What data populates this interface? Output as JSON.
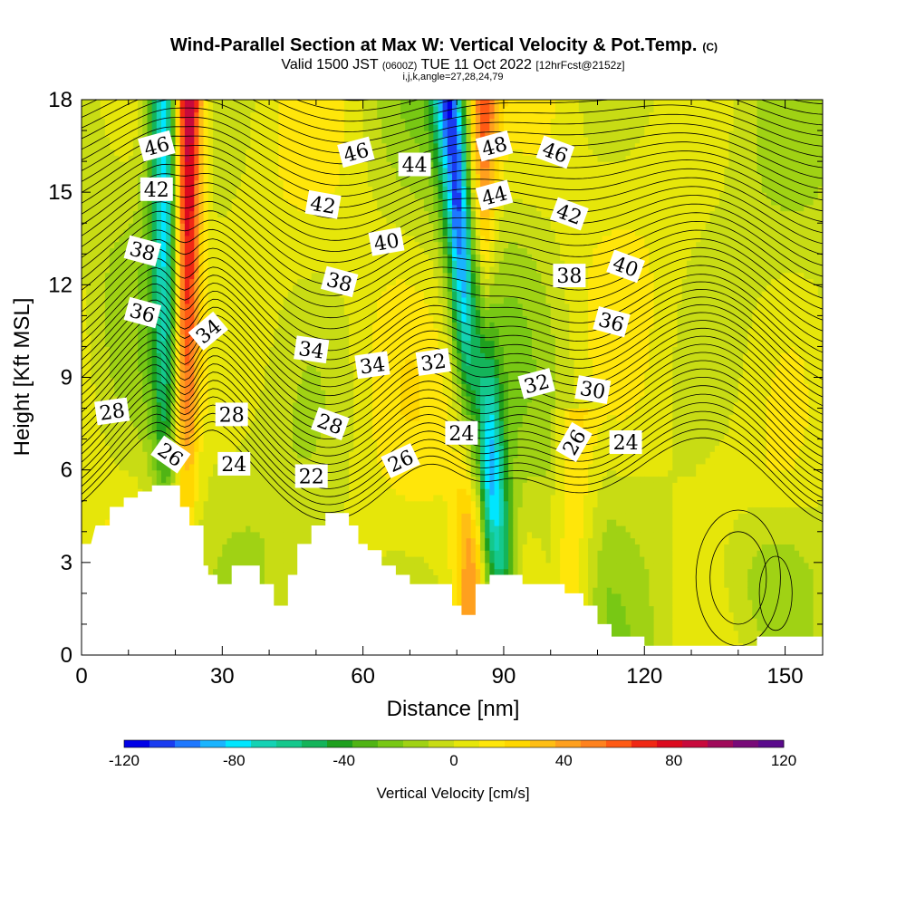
{
  "title": {
    "main": "Wind-Parallel Section at Max W: Vertical Velocity & Pot.Temp.",
    "main_unit": "(C)",
    "valid_prefix": "Valid 1500 JST",
    "valid_zulu": "(0600Z)",
    "valid_date": "TUE 11 Oct 2022",
    "forecast": "[12hrFcst@2152z]",
    "indices": "i,j,k,angle=27,28,24,79"
  },
  "chart_data": {
    "type": "heatmap",
    "xlabel": "Distance [nm]",
    "ylabel": "Height [Kft MSL]",
    "xlim": [
      0,
      158
    ],
    "ylim": [
      0,
      18
    ],
    "x_ticks": [
      0,
      30,
      60,
      90,
      120,
      150
    ],
    "y_ticks": [
      0,
      3,
      6,
      9,
      12,
      15,
      18
    ],
    "grid": false,
    "colorbar": {
      "label": "Vertical Velocity [cm/s]",
      "min": -120,
      "max": 120,
      "step": 10,
      "tick_values": [
        -120,
        -80,
        -40,
        0,
        40,
        80,
        120
      ],
      "colors": [
        "#0000e6",
        "#1a3cf0",
        "#1e78ff",
        "#19b4ff",
        "#00e6ff",
        "#14d2b4",
        "#14c88c",
        "#14b45a",
        "#1ea01e",
        "#50b414",
        "#78c814",
        "#a0d214",
        "#c8dc14",
        "#e6e60a",
        "#ffe60a",
        "#ffd700",
        "#ffbe14",
        "#ffa01e",
        "#ff821e",
        "#ff5a14",
        "#f02814",
        "#dc0a1e",
        "#c80a3c",
        "#a00a5a",
        "#780a78",
        "#5a0a8c"
      ]
    },
    "terrain_kft": [
      [
        0,
        3.6
      ],
      [
        1,
        3.6
      ],
      [
        2,
        3.6
      ],
      [
        3,
        4.2
      ],
      [
        6,
        4.2
      ],
      [
        6,
        4.8
      ],
      [
        9,
        4.8
      ],
      [
        9,
        5.1
      ],
      [
        12,
        5.1
      ],
      [
        12,
        5.3
      ],
      [
        15,
        5.3
      ],
      [
        15,
        5.5
      ],
      [
        21,
        5.5
      ],
      [
        21,
        4.8
      ],
      [
        23,
        4.8
      ],
      [
        23,
        4.2
      ],
      [
        26,
        4.2
      ],
      [
        26,
        2.9
      ],
      [
        27,
        2.9
      ],
      [
        27,
        2.6
      ],
      [
        29,
        2.6
      ],
      [
        29,
        2.3
      ],
      [
        32,
        2.3
      ],
      [
        32,
        2.9
      ],
      [
        38,
        2.9
      ],
      [
        38,
        2.3
      ],
      [
        41,
        2.3
      ],
      [
        41,
        1.6
      ],
      [
        44,
        1.6
      ],
      [
        44,
        2.6
      ],
      [
        46,
        2.6
      ],
      [
        46,
        3.6
      ],
      [
        49,
        3.6
      ],
      [
        49,
        4.2
      ],
      [
        52,
        4.2
      ],
      [
        52,
        4.6
      ],
      [
        57,
        4.6
      ],
      [
        57,
        4.2
      ],
      [
        59,
        4.2
      ],
      [
        59,
        3.6
      ],
      [
        61,
        3.6
      ],
      [
        61,
        3.4
      ],
      [
        64,
        3.4
      ],
      [
        64,
        2.9
      ],
      [
        67,
        2.9
      ],
      [
        67,
        2.6
      ],
      [
        70,
        2.6
      ],
      [
        70,
        2.3
      ],
      [
        79,
        2.3
      ],
      [
        79,
        1.6
      ],
      [
        81,
        1.6
      ],
      [
        81,
        1.3
      ],
      [
        84,
        1.3
      ],
      [
        84,
        2.3
      ],
      [
        87,
        2.3
      ],
      [
        87,
        2.6
      ],
      [
        94,
        2.6
      ],
      [
        94,
        2.3
      ],
      [
        103,
        2.3
      ],
      [
        103,
        2.0
      ],
      [
        107,
        2.0
      ],
      [
        107,
        1.6
      ],
      [
        110,
        1.6
      ],
      [
        110,
        1.0
      ],
      [
        113,
        1.0
      ],
      [
        113,
        0.6
      ],
      [
        120,
        0.6
      ],
      [
        120,
        0.3
      ],
      [
        144,
        0.3
      ],
      [
        144,
        0.6
      ],
      [
        158,
        0.6
      ]
    ],
    "updrafts_cm_s": [
      {
        "x_surface": 21,
        "x_top": 23,
        "peak": 110
      },
      {
        "x_surface": 83,
        "x_top": 86,
        "peak": 60
      }
    ],
    "downdrafts_cm_s": [
      {
        "x_surface": 20,
        "x_top": 17,
        "peak": -90
      },
      {
        "x_surface": 89,
        "x_top": 77,
        "peak": -100
      }
    ],
    "theta_contour_labels": [
      {
        "text": "46",
        "x": 16,
        "y": 16.5,
        "angle": -15
      },
      {
        "text": "42",
        "x": 16,
        "y": 15.1,
        "angle": 0
      },
      {
        "text": "38",
        "x": 13,
        "y": 13.1,
        "angle": 15
      },
      {
        "text": "36",
        "x": 13,
        "y": 11.1,
        "angle": 15
      },
      {
        "text": "34",
        "x": 27,
        "y": 10.5,
        "angle": -40
      },
      {
        "text": "28",
        "x": 6.5,
        "y": 7.9,
        "angle": -8
      },
      {
        "text": "26",
        "x": 19,
        "y": 6.5,
        "angle": 35
      },
      {
        "text": "28",
        "x": 32,
        "y": 7.8,
        "angle": 0
      },
      {
        "text": "24",
        "x": 32.5,
        "y": 6.2,
        "angle": 0
      },
      {
        "text": "22",
        "x": 49,
        "y": 5.8,
        "angle": 0
      },
      {
        "text": "34",
        "x": 49,
        "y": 9.9,
        "angle": 8
      },
      {
        "text": "28",
        "x": 53,
        "y": 7.5,
        "angle": 20
      },
      {
        "text": "42",
        "x": 51.5,
        "y": 14.6,
        "angle": 10
      },
      {
        "text": "46",
        "x": 58.5,
        "y": 16.3,
        "angle": -15
      },
      {
        "text": "38",
        "x": 55,
        "y": 12.1,
        "angle": 15
      },
      {
        "text": "34",
        "x": 62,
        "y": 9.4,
        "angle": -8
      },
      {
        "text": "40",
        "x": 65,
        "y": 13.4,
        "angle": -10
      },
      {
        "text": "44",
        "x": 71,
        "y": 15.9,
        "angle": 0
      },
      {
        "text": "32",
        "x": 75,
        "y": 9.5,
        "angle": -8
      },
      {
        "text": "26",
        "x": 68,
        "y": 6.3,
        "angle": -25
      },
      {
        "text": "24",
        "x": 81,
        "y": 7.2,
        "angle": 0
      },
      {
        "text": "48",
        "x": 88,
        "y": 16.5,
        "angle": -15
      },
      {
        "text": "44",
        "x": 88,
        "y": 14.9,
        "angle": -15
      },
      {
        "text": "32",
        "x": 97,
        "y": 8.8,
        "angle": -15
      },
      {
        "text": "46",
        "x": 101,
        "y": 16.3,
        "angle": 20
      },
      {
        "text": "42",
        "x": 104,
        "y": 14.3,
        "angle": 20
      },
      {
        "text": "38",
        "x": 104,
        "y": 12.3,
        "angle": 0
      },
      {
        "text": "30",
        "x": 109,
        "y": 8.6,
        "angle": 10
      },
      {
        "text": "26",
        "x": 105,
        "y": 6.9,
        "angle": -60
      },
      {
        "text": "36",
        "x": 113,
        "y": 10.8,
        "angle": 15
      },
      {
        "text": "40",
        "x": 116,
        "y": 12.6,
        "angle": 20
      },
      {
        "text": "24",
        "x": 116,
        "y": 6.9,
        "angle": 0
      }
    ]
  }
}
